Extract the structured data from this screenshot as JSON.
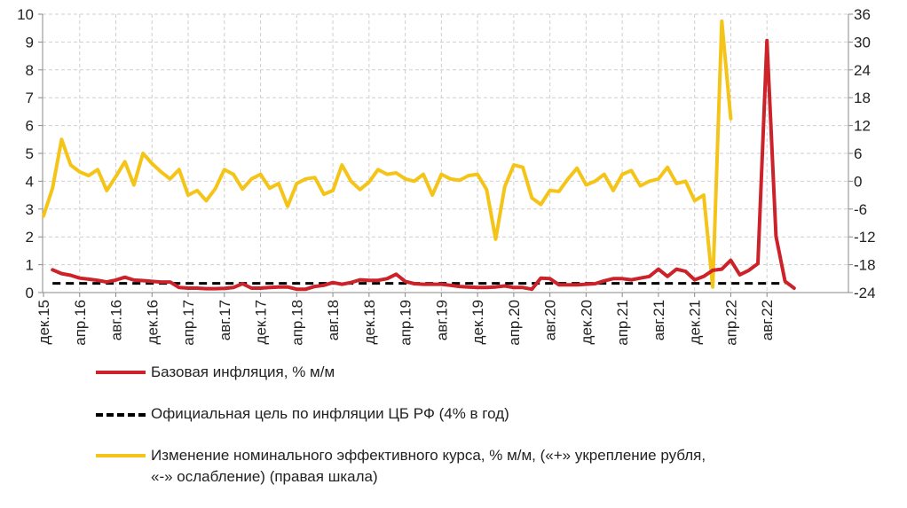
{
  "chart_data": {
    "type": "line",
    "title": "",
    "x_tick_labels": [
      "дек.15",
      "апр.16",
      "авг.16",
      "дек.16",
      "апр.17",
      "авг.17",
      "дек.17",
      "апр.18",
      "авг.18",
      "дек.18",
      "апр.19",
      "авг.19",
      "дек.19",
      "апр.20",
      "авг.20",
      "дек.20",
      "апр.21",
      "авг.21",
      "дек.21",
      "апр.22",
      "авг.22"
    ],
    "x_month_index_start": 0,
    "left_axis": {
      "min": 0,
      "max": 10,
      "ticks": [
        0,
        1,
        2,
        3,
        4,
        5,
        6,
        7,
        8,
        9,
        10
      ]
    },
    "right_axis": {
      "min": -24,
      "max": 36,
      "ticks": [
        -24,
        -18,
        -12,
        -6,
        0,
        6,
        12,
        18,
        24,
        30,
        36
      ]
    },
    "grid": true,
    "series": [
      {
        "name": "Базовая инфляция, % м/м",
        "axis": "left",
        "color": "#cc2229",
        "style": "solid",
        "x_start": 1,
        "values": [
          0.82,
          0.68,
          0.62,
          0.52,
          0.48,
          0.44,
          0.38,
          0.45,
          0.55,
          0.45,
          0.43,
          0.4,
          0.38,
          0.38,
          0.18,
          0.16,
          0.16,
          0.14,
          0.14,
          0.15,
          0.18,
          0.32,
          0.16,
          0.16,
          0.18,
          0.2,
          0.2,
          0.12,
          0.12,
          0.22,
          0.26,
          0.36,
          0.3,
          0.36,
          0.46,
          0.44,
          0.44,
          0.5,
          0.66,
          0.4,
          0.32,
          0.3,
          0.3,
          0.3,
          0.26,
          0.22,
          0.2,
          0.18,
          0.18,
          0.2,
          0.24,
          0.18,
          0.18,
          0.12,
          0.52,
          0.5,
          0.28,
          0.28,
          0.28,
          0.3,
          0.32,
          0.42,
          0.5,
          0.5,
          0.46,
          0.52,
          0.58,
          0.84,
          0.58,
          0.84,
          0.76,
          0.46,
          0.58,
          0.8,
          0.84,
          1.16,
          0.64,
          0.8,
          1.04,
          9.05,
          2.02,
          0.4,
          0.16
        ]
      },
      {
        "name": "Официальная цель по инфляции ЦБ РФ (4% в год)",
        "axis": "left",
        "color": "#000000",
        "style": "dashed",
        "x_start": 1,
        "x_end": 82,
        "value": 0.33
      },
      {
        "name": "Изменение номинального эффективного курса, % м/м, («+» укрепление рубля, «-» ослабление) (правая шкала)",
        "axis": "right",
        "color": "#f4c418",
        "style": "solid",
        "x_start": 0,
        "values": [
          -7.5,
          -1.5,
          9.0,
          3.5,
          2.0,
          1.2,
          2.5,
          -2.0,
          1.0,
          4.2,
          -0.8,
          6.0,
          3.8,
          2.0,
          0.5,
          2.5,
          -3.0,
          -2.0,
          -4.2,
          -1.6,
          2.5,
          1.5,
          -1.7,
          0.5,
          1.5,
          -1.5,
          -0.5,
          -5.4,
          -0.5,
          0.5,
          0.8,
          -2.8,
          -2.0,
          3.5,
          0.0,
          -1.8,
          -0.2,
          2.5,
          1.5,
          1.8,
          0.5,
          0.0,
          1.5,
          -3.0,
          1.5,
          0.5,
          0.2,
          1.2,
          1.5,
          -1.8,
          -12.5,
          -1.2,
          3.5,
          3.0,
          -3.6,
          -5.0,
          -2.0,
          -2.2,
          0.5,
          2.8,
          -0.8,
          0.0,
          1.5,
          -2.0,
          1.5,
          2.3,
          -1.0,
          0.0,
          0.5,
          3.0,
          -0.5,
          0.0,
          -4.2,
          -3.0,
          -22.8,
          34.5,
          13.5
        ]
      }
    ],
    "legend_position": "bottom",
    "xlabel": "",
    "ylabel_left": "",
    "ylabel_right": ""
  },
  "legend": {
    "base_inflation": "Базовая инфляция, % м/м",
    "target": "Официальная цель по инфляции ЦБ РФ (4% в год)",
    "exchange_rate_line1": "Изменение номинального эффективного курса, % м/м, («+» укрепление рубля,",
    "exchange_rate_line2": "«-» ослабление) (правая шкала)"
  }
}
